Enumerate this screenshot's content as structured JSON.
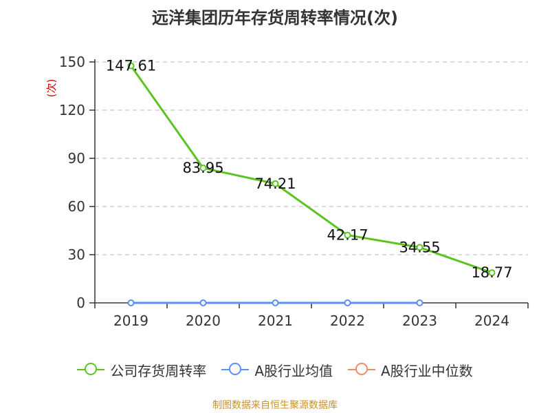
{
  "chart_data": {
    "type": "line",
    "title": "远洋集团历年存货周转率情况(次)",
    "ylabel": "(次)",
    "categories": [
      "2019",
      "2020",
      "2021",
      "2022",
      "2023",
      "2024"
    ],
    "ylim": [
      0,
      150
    ],
    "yticks": [
      0,
      30,
      60,
      90,
      120,
      150
    ],
    "grid": true,
    "legend_position": "bottom",
    "series": [
      {
        "name": "公司存货周转率",
        "color": "#5cc421",
        "values": [
          147.61,
          83.95,
          74.21,
          42.17,
          34.55,
          18.77
        ],
        "labels": [
          "147.61",
          "83.95",
          "74.21",
          "42.17",
          "34.55",
          "18.77"
        ]
      },
      {
        "name": "A股行业均值",
        "color": "#5b8ff9",
        "values": [
          0,
          0,
          0,
          0,
          0,
          null
        ]
      },
      {
        "name": "A股行业中位数",
        "color": "#f08c65",
        "values": [
          0,
          0,
          0,
          0,
          0,
          null
        ]
      }
    ],
    "source": "制图数据来自恒生聚源数据库"
  }
}
